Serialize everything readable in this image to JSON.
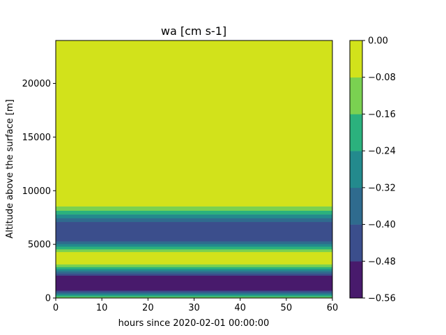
{
  "chart_data": {
    "type": "heatmap",
    "title": "wa [cm s-1]",
    "xlabel": "hours since 2020-02-01 00:00:00",
    "ylabel": "Altitude above the surface [m]",
    "xlim": [
      0,
      60
    ],
    "ylim": [
      0,
      24000
    ],
    "xticks": [
      "0",
      "10",
      "20",
      "30",
      "40",
      "50",
      "60"
    ],
    "yticks": [
      "0",
      "5000",
      "10000",
      "15000",
      "20000"
    ],
    "colorbar": {
      "levels": [
        -0.56,
        -0.48,
        -0.4,
        -0.32,
        -0.24,
        -0.16,
        -0.08,
        0.0
      ],
      "tick_labels": [
        "−0.56",
        "−0.48",
        "−0.40",
        "−0.32",
        "−0.24",
        "−0.16",
        "−0.08",
        "0.00"
      ],
      "colors": [
        "#481a6c",
        "#3b4e8c",
        "#2f6b8e",
        "#238a8d",
        "#2bb17d",
        "#7ad151",
        "#d2e21b"
      ]
    },
    "bands": [
      {
        "y0": 0,
        "y1": 120,
        "level": 5
      },
      {
        "y0": 120,
        "y1": 260,
        "level": 4
      },
      {
        "y0": 260,
        "y1": 400,
        "level": 3
      },
      {
        "y0": 400,
        "y1": 540,
        "level": 2
      },
      {
        "y0": 540,
        "y1": 700,
        "level": 1
      },
      {
        "y0": 700,
        "y1": 2100,
        "level": 0
      },
      {
        "y0": 2100,
        "y1": 2300,
        "level": 1
      },
      {
        "y0": 2300,
        "y1": 2500,
        "level": 2
      },
      {
        "y0": 2500,
        "y1": 2700,
        "level": 3
      },
      {
        "y0": 2700,
        "y1": 2900,
        "level": 4
      },
      {
        "y0": 2900,
        "y1": 3150,
        "level": 5
      },
      {
        "y0": 3150,
        "y1": 4300,
        "level": 6
      },
      {
        "y0": 4300,
        "y1": 4550,
        "level": 5
      },
      {
        "y0": 4550,
        "y1": 4800,
        "level": 4
      },
      {
        "y0": 4800,
        "y1": 5050,
        "level": 3
      },
      {
        "y0": 5050,
        "y1": 5300,
        "level": 2
      },
      {
        "y0": 5300,
        "y1": 7100,
        "level": 1
      },
      {
        "y0": 7100,
        "y1": 7450,
        "level": 2
      },
      {
        "y0": 7450,
        "y1": 7800,
        "level": 3
      },
      {
        "y0": 7800,
        "y1": 8150,
        "level": 4
      },
      {
        "y0": 8150,
        "y1": 8550,
        "level": 5
      },
      {
        "y0": 8550,
        "y1": 24000,
        "level": 6
      }
    ]
  }
}
